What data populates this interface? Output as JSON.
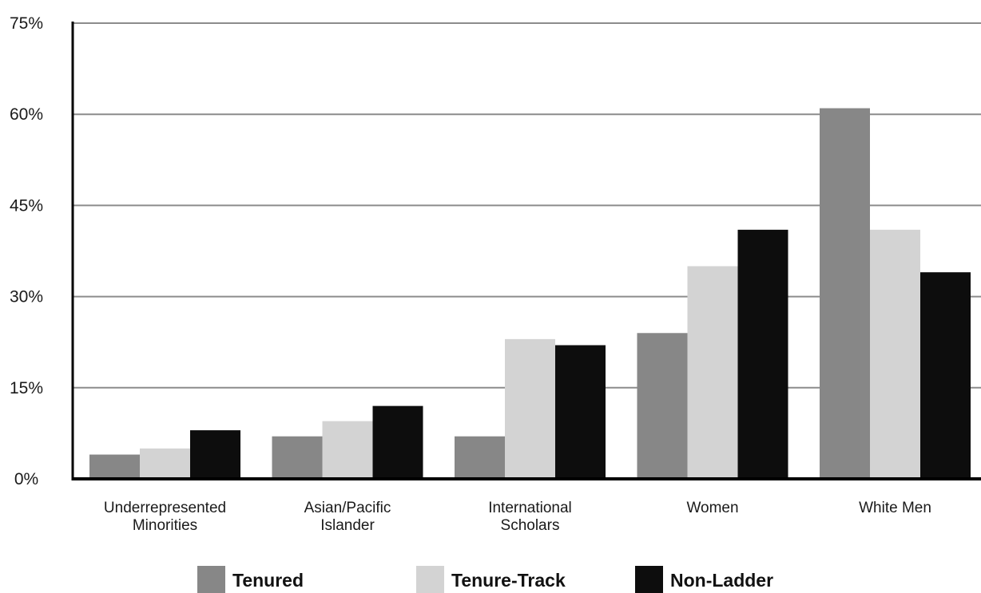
{
  "chart_data": {
    "type": "bar",
    "title": "",
    "xlabel": "",
    "ylabel": "",
    "ylim": [
      0,
      75
    ],
    "yticks": [
      0,
      15,
      30,
      45,
      60,
      75
    ],
    "ytick_labels": [
      "0%",
      "15%",
      "30%",
      "45%",
      "60%",
      "75%"
    ],
    "grid": true,
    "legend_position": "bottom",
    "categories": [
      [
        "Underrepresented",
        "Minorities"
      ],
      [
        "Asian/Pacific",
        "Islander"
      ],
      [
        "International",
        "Scholars"
      ],
      [
        "Women"
      ],
      [
        "White Men"
      ]
    ],
    "series": [
      {
        "name": "Tenured",
        "color": "#878787",
        "values": [
          4,
          7,
          7,
          24,
          61
        ]
      },
      {
        "name": "Tenure-Track",
        "color": "#d3d3d3",
        "values": [
          5,
          9.5,
          23,
          35,
          41
        ]
      },
      {
        "name": "Non-Ladder",
        "color": "#0d0d0d",
        "values": [
          8,
          12,
          22,
          41,
          34
        ]
      }
    ]
  }
}
